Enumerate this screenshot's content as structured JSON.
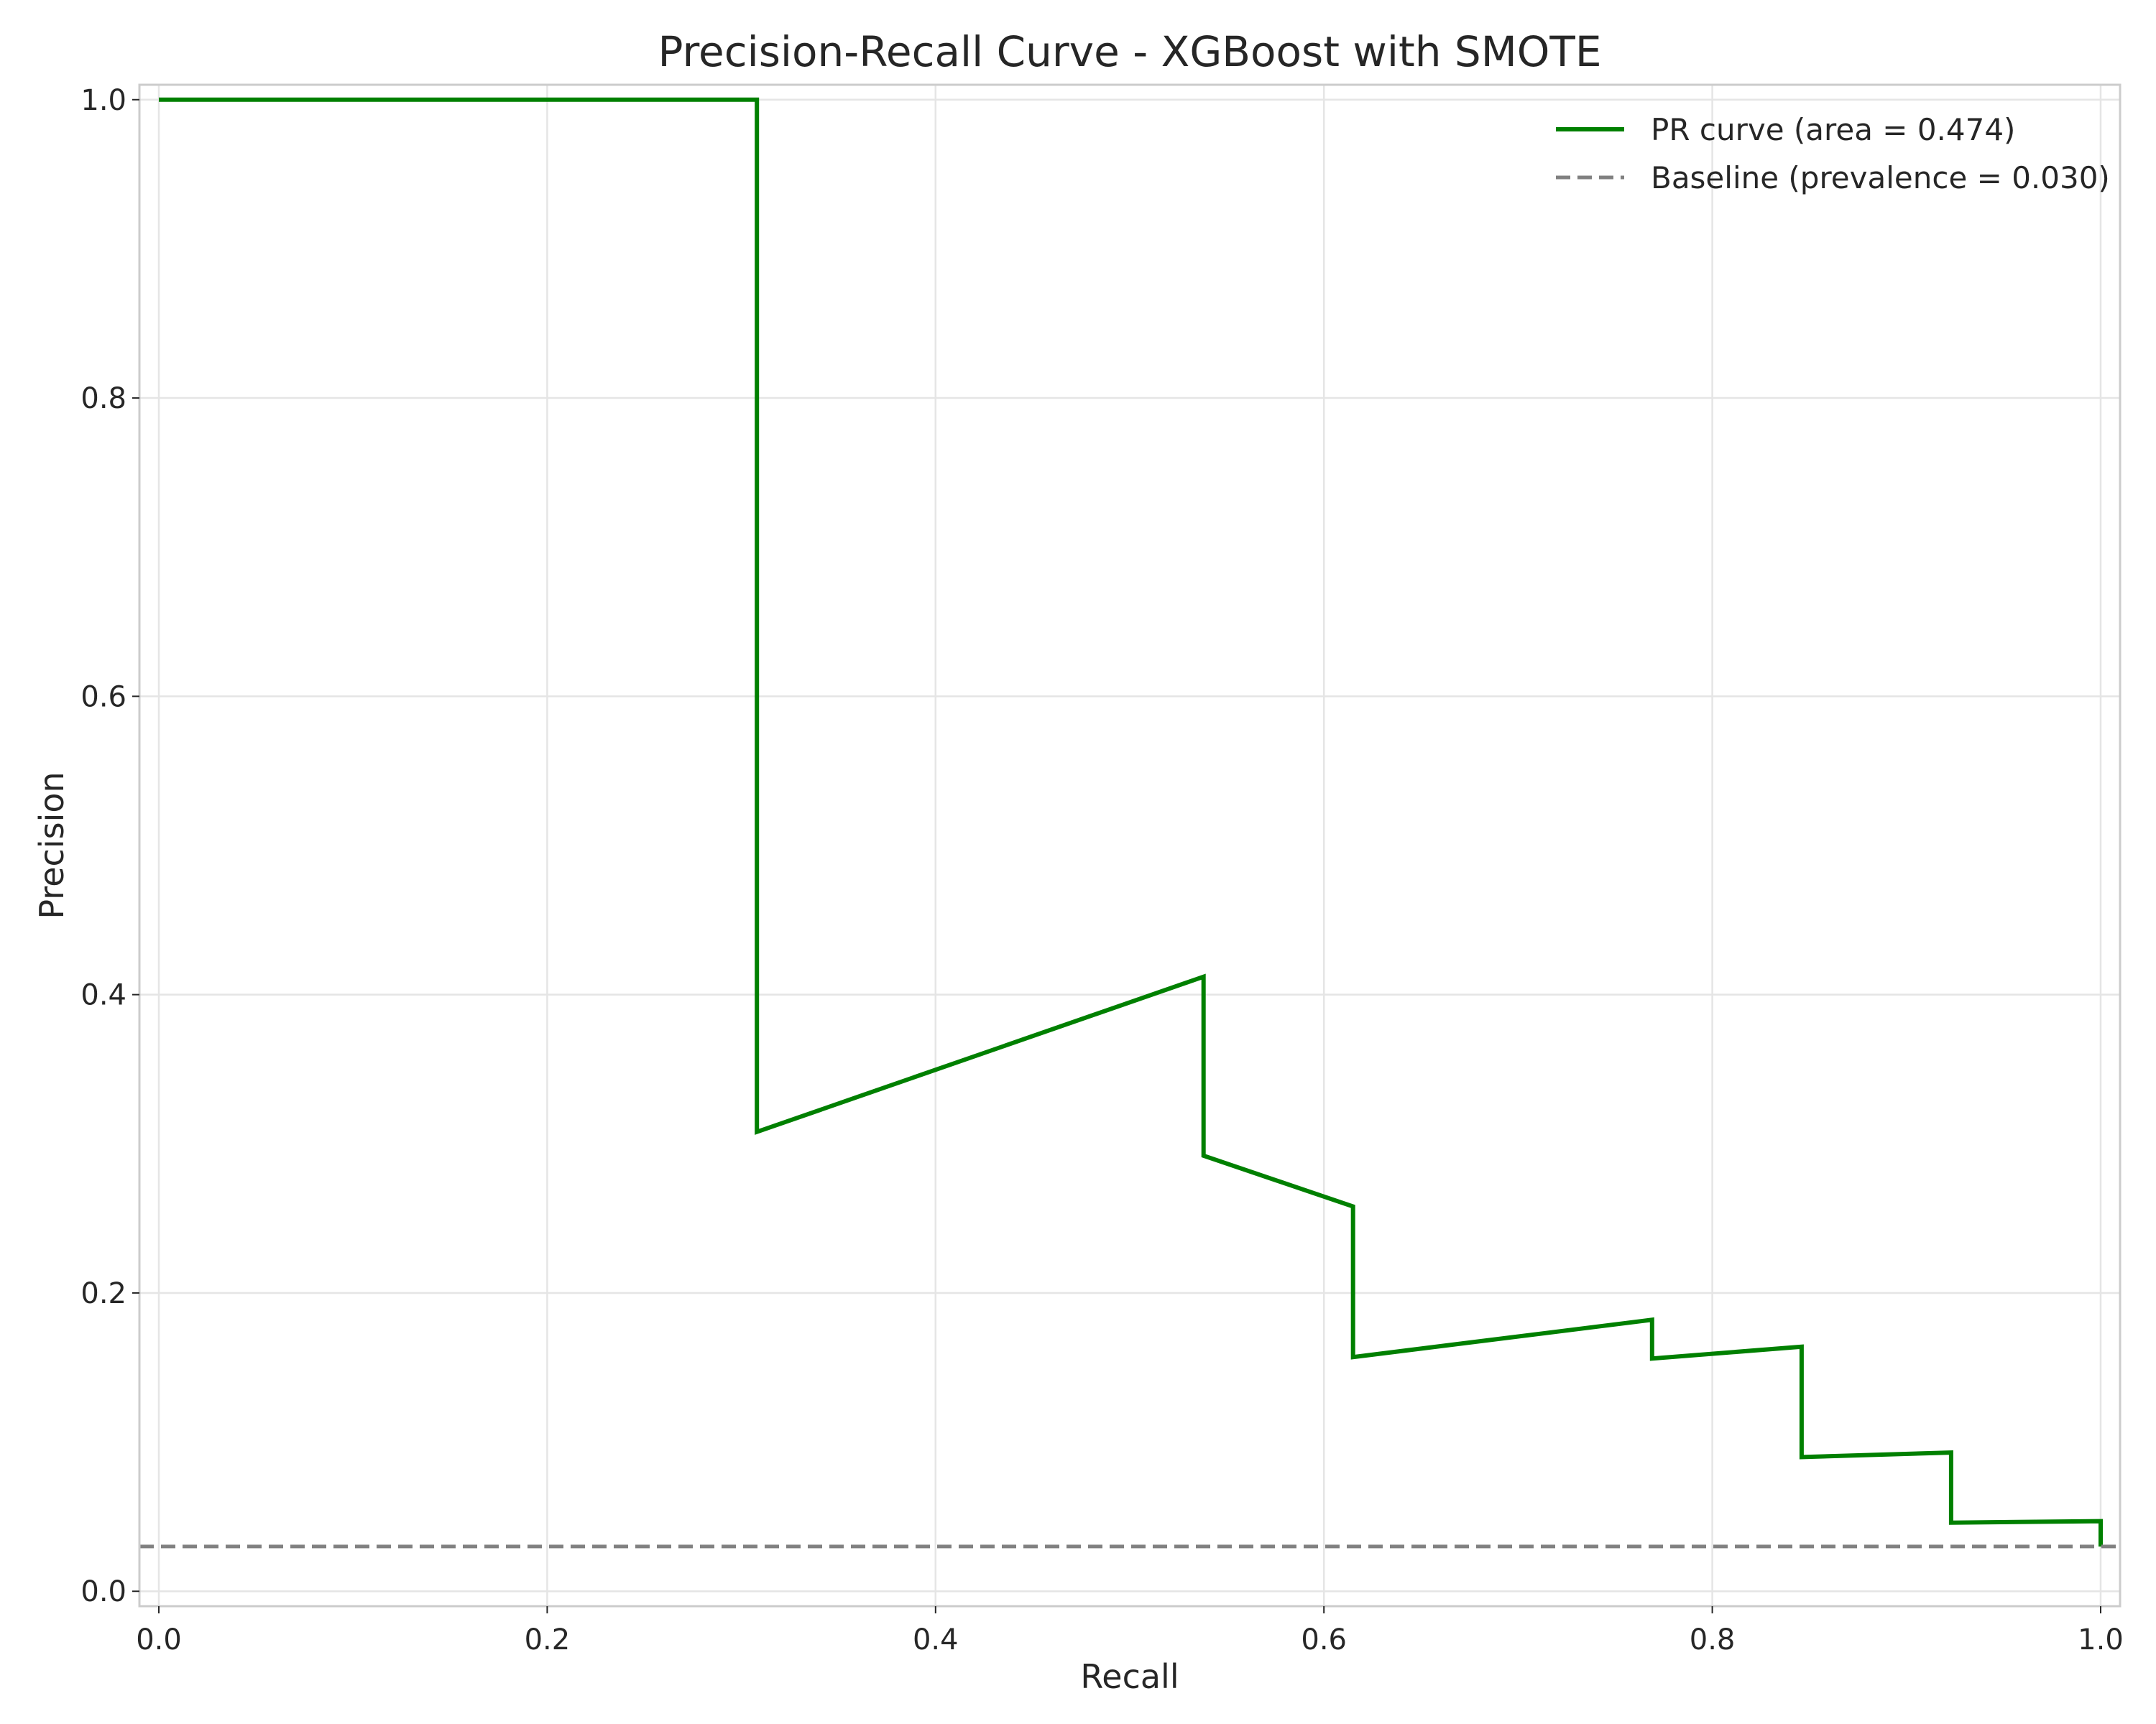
{
  "chart_data": {
    "type": "line",
    "title": "Precision-Recall Curve - XGBoost with SMOTE",
    "xlabel": "Recall",
    "ylabel": "Precision",
    "xlim": [
      -0.01,
      1.01
    ],
    "ylim": [
      -0.01,
      1.01
    ],
    "xticks": [
      0.0,
      0.2,
      0.4,
      0.6,
      0.8,
      1.0
    ],
    "yticks": [
      0.0,
      0.2,
      0.4,
      0.6,
      0.8,
      1.0
    ],
    "xtick_labels": [
      "0.0",
      "0.2",
      "0.4",
      "0.6",
      "0.8",
      "1.0"
    ],
    "ytick_labels": [
      "0.0",
      "0.2",
      "0.4",
      "0.6",
      "0.8",
      "1.0"
    ],
    "grid": true,
    "legend_position": "top-right",
    "series": [
      {
        "name": "PR curve (area = 0.474)",
        "color": "#008000",
        "style": "solid",
        "x": [
          0.0,
          0.308,
          0.308,
          0.538,
          0.538,
          0.615,
          0.615,
          0.769,
          0.769,
          0.846,
          0.846,
          0.923,
          0.923,
          1.0,
          1.0
        ],
        "y": [
          1.0,
          1.0,
          0.308,
          0.412,
          0.292,
          0.258,
          0.157,
          0.182,
          0.156,
          0.164,
          0.09,
          0.093,
          0.046,
          0.047,
          0.03
        ]
      },
      {
        "name": "Baseline (prevalence = 0.030)",
        "color": "#808080",
        "style": "dashed",
        "x": [
          -0.01,
          1.01
        ],
        "y": [
          0.03,
          0.03
        ]
      }
    ]
  }
}
